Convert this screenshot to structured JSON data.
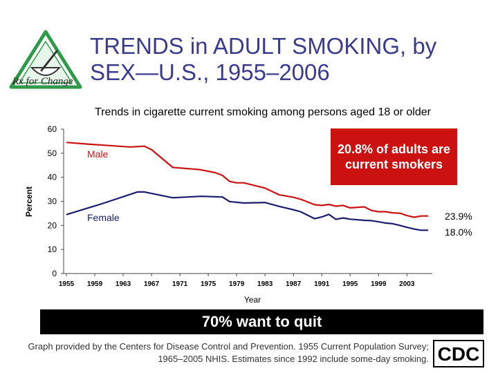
{
  "logo": {
    "text": "Rx for Change"
  },
  "title": "TRENDS in ADULT SMOKING, by SEX—U.S., 1955–2006",
  "colors": {
    "male": "#cc1111",
    "female": "#1a1a6e",
    "title": "#3b3b8c"
  },
  "callout": "20.8% of adults are current smokers",
  "banner": "70% want to quit",
  "footnote": "Graph provided by the Centers for Disease Control and Prevention. 1955 Current Population Survey; 1965–2005 NHIS. Estimates since 1992 include some-day smoking.",
  "cdc_logo": {
    "text": "CDC"
  },
  "chart_data": {
    "type": "line",
    "title": "Trends in cigarette current smoking among persons aged 18 or older",
    "xlabel": "Year",
    "ylabel": "Percent",
    "xlim": [
      1955,
      2006
    ],
    "ylim": [
      0,
      60
    ],
    "yticks": [
      0,
      10,
      20,
      30,
      40,
      50,
      60
    ],
    "xticks": [
      1955,
      1959,
      1963,
      1967,
      1971,
      1975,
      1979,
      1983,
      1987,
      1991,
      1995,
      1999,
      2003
    ],
    "grid": false,
    "series": [
      {
        "name": "Male",
        "label_value": "23.9%",
        "points": [
          [
            1955,
            54.5
          ],
          [
            1958,
            53.8
          ],
          [
            1961,
            53.2
          ],
          [
            1964,
            52.6
          ],
          [
            1966,
            52.9
          ],
          [
            1967,
            51.5
          ],
          [
            1970,
            44.1
          ],
          [
            1973,
            43.4
          ],
          [
            1974,
            43.1
          ],
          [
            1976,
            41.9
          ],
          [
            1977,
            40.8
          ],
          [
            1978,
            38.3
          ],
          [
            1979,
            37.7
          ],
          [
            1980,
            37.7
          ],
          [
            1983,
            35.5
          ],
          [
            1985,
            32.7
          ],
          [
            1987,
            31.7
          ],
          [
            1988,
            30.9
          ],
          [
            1990,
            28.6
          ],
          [
            1991,
            28.3
          ],
          [
            1992,
            28.7
          ],
          [
            1993,
            28.0
          ],
          [
            1994,
            28.3
          ],
          [
            1995,
            27.3
          ],
          [
            1997,
            27.7
          ],
          [
            1998,
            26.2
          ],
          [
            1999,
            25.7
          ],
          [
            2000,
            25.7
          ],
          [
            2001,
            25.2
          ],
          [
            2002,
            25.1
          ],
          [
            2003,
            24.1
          ],
          [
            2004,
            23.4
          ],
          [
            2005,
            23.9
          ],
          [
            2006,
            23.9
          ]
        ]
      },
      {
        "name": "Female",
        "label_value": "18.0%",
        "points": [
          [
            1955,
            24.5
          ],
          [
            1960,
            29.0
          ],
          [
            1965,
            33.9
          ],
          [
            1966,
            33.9
          ],
          [
            1970,
            31.5
          ],
          [
            1974,
            32.1
          ],
          [
            1977,
            31.8
          ],
          [
            1978,
            29.9
          ],
          [
            1980,
            29.3
          ],
          [
            1983,
            29.5
          ],
          [
            1985,
            27.9
          ],
          [
            1987,
            26.5
          ],
          [
            1988,
            25.7
          ],
          [
            1990,
            22.8
          ],
          [
            1991,
            23.5
          ],
          [
            1992,
            24.6
          ],
          [
            1993,
            22.5
          ],
          [
            1994,
            23.1
          ],
          [
            1995,
            22.6
          ],
          [
            1997,
            22.1
          ],
          [
            1998,
            22.0
          ],
          [
            1999,
            21.5
          ],
          [
            2000,
            21.0
          ],
          [
            2001,
            20.7
          ],
          [
            2002,
            20.0
          ],
          [
            2003,
            19.2
          ],
          [
            2004,
            18.5
          ],
          [
            2005,
            18.0
          ],
          [
            2006,
            18.0
          ]
        ]
      }
    ]
  }
}
